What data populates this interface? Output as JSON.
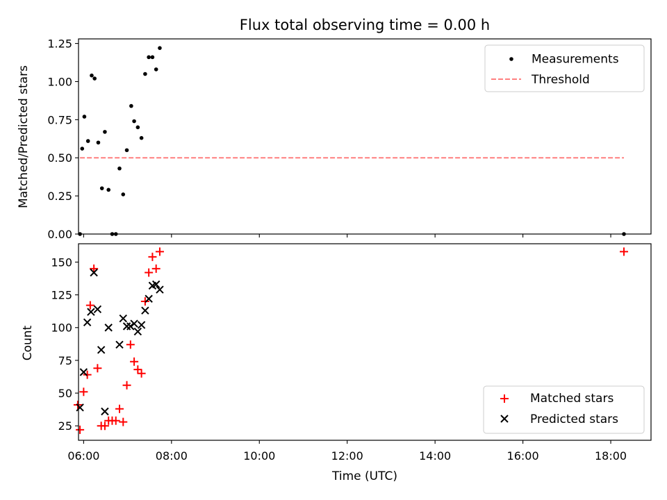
{
  "chart_data": [
    {
      "type": "scatter",
      "title": "Flux total observing time = 0.00 h",
      "ylabel": "Matched/Predicted stars",
      "xlabel": "",
      "xlim": [
        "05:53",
        "18:55"
      ],
      "ylim": [
        0,
        1.28
      ],
      "yticks": [
        "0.00",
        "0.25",
        "0.50",
        "0.75",
        "1.00",
        "1.25"
      ],
      "xticks": [
        "06:00",
        "08:00",
        "10:00",
        "12:00",
        "14:00",
        "16:00",
        "18:00"
      ],
      "grid": false,
      "legend": "top-right",
      "series": [
        {
          "name": "Measurements",
          "marker": "dot",
          "color": "#000000",
          "points": [
            [
              "05:55",
              0.0
            ],
            [
              "05:58",
              0.56
            ],
            [
              "06:01",
              0.77
            ],
            [
              "06:06",
              0.61
            ],
            [
              "06:11",
              1.04
            ],
            [
              "06:15",
              1.02
            ],
            [
              "06:20",
              0.6
            ],
            [
              "06:25",
              0.3
            ],
            [
              "06:29",
              0.67
            ],
            [
              "06:34",
              0.29
            ],
            [
              "06:39",
              0.0
            ],
            [
              "06:44",
              0.0
            ],
            [
              "06:49",
              0.43
            ],
            [
              "06:54",
              0.26
            ],
            [
              "06:59",
              0.55
            ],
            [
              "07:05",
              0.84
            ],
            [
              "07:09",
              0.74
            ],
            [
              "07:14",
              0.7
            ],
            [
              "07:19",
              0.63
            ],
            [
              "07:24",
              1.05
            ],
            [
              "07:29",
              1.16
            ],
            [
              "07:34",
              1.16
            ],
            [
              "07:39",
              1.08
            ],
            [
              "07:44",
              1.22
            ],
            [
              "18:18",
              0.0
            ]
          ]
        },
        {
          "name": "Threshold",
          "line": "dashed",
          "color": "#ff7f7f",
          "points": [
            [
              "05:55",
              0.5
            ],
            [
              "18:18",
              0.5
            ]
          ]
        }
      ]
    },
    {
      "type": "scatter",
      "title": "",
      "ylabel": "Count",
      "xlabel": "Time (UTC)",
      "xlim": [
        "05:53",
        "18:55"
      ],
      "ylim": [
        14,
        164
      ],
      "yticks": [
        "25",
        "50",
        "75",
        "100",
        "125",
        "150"
      ],
      "xticks": [
        "06:00",
        "08:00",
        "10:00",
        "12:00",
        "14:00",
        "16:00",
        "18:00"
      ],
      "grid": false,
      "legend": "bottom-right",
      "series": [
        {
          "name": "Matched stars",
          "marker": "plus",
          "color": "#ff0000",
          "points": [
            [
              "05:52",
              41
            ],
            [
              "05:55",
              22
            ],
            [
              "06:00",
              51
            ],
            [
              "06:05",
              64
            ],
            [
              "06:09",
              117
            ],
            [
              "06:14",
              145
            ],
            [
              "06:19",
              69
            ],
            [
              "06:24",
              25
            ],
            [
              "06:29",
              25
            ],
            [
              "06:34",
              29
            ],
            [
              "06:39",
              29
            ],
            [
              "06:44",
              29
            ],
            [
              "06:49",
              38
            ],
            [
              "06:54",
              28
            ],
            [
              "06:59",
              56
            ],
            [
              "07:04",
              87
            ],
            [
              "07:09",
              74
            ],
            [
              "07:14",
              68
            ],
            [
              "07:19",
              65
            ],
            [
              "07:24",
              120
            ],
            [
              "07:29",
              142
            ],
            [
              "07:34",
              154
            ],
            [
              "07:39",
              145
            ],
            [
              "07:44",
              158
            ],
            [
              "18:18",
              158
            ]
          ]
        },
        {
          "name": "Predicted stars",
          "marker": "x",
          "color": "#000000",
          "points": [
            [
              "05:55",
              39
            ],
            [
              "06:00",
              66
            ],
            [
              "06:05",
              104
            ],
            [
              "06:10",
              112
            ],
            [
              "06:14",
              142
            ],
            [
              "06:19",
              114
            ],
            [
              "06:24",
              83
            ],
            [
              "06:29",
              36
            ],
            [
              "06:34",
              100
            ],
            [
              "06:49",
              87
            ],
            [
              "06:54",
              107
            ],
            [
              "06:59",
              101
            ],
            [
              "07:04",
              101
            ],
            [
              "07:09",
              103
            ],
            [
              "07:14",
              97
            ],
            [
              "07:19",
              102
            ],
            [
              "07:24",
              113
            ],
            [
              "07:29",
              122
            ],
            [
              "07:34",
              132
            ],
            [
              "07:39",
              133
            ],
            [
              "07:44",
              129
            ]
          ]
        }
      ]
    }
  ]
}
